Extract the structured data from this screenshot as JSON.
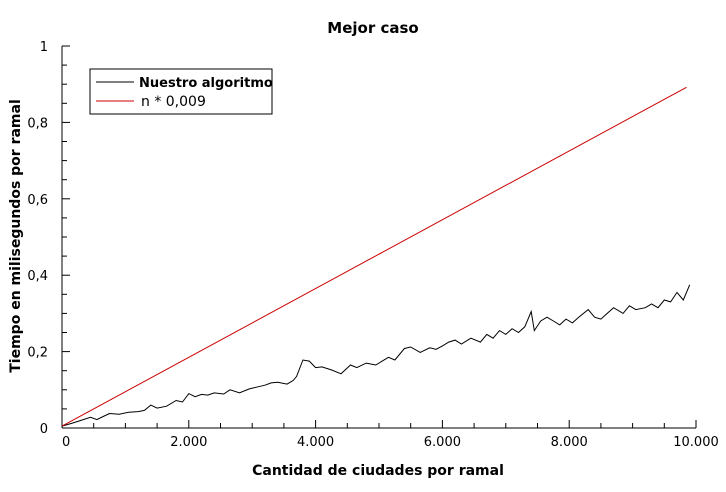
{
  "chart_data": {
    "type": "line",
    "title": "Mejor caso",
    "xlabel": "Cantidad de ciudades por ramal",
    "ylabel": "Tiempo en milisegundos por ramal",
    "xlim": [
      0,
      10000
    ],
    "ylim": [
      0,
      1
    ],
    "xticks": [
      {
        "value": 0,
        "label": "0"
      },
      {
        "value": 2000,
        "label": "2.000"
      },
      {
        "value": 4000,
        "label": "4.000"
      },
      {
        "value": 6000,
        "label": "6.000"
      },
      {
        "value": 8000,
        "label": "8.000"
      },
      {
        "value": 10000,
        "label": "10.000"
      }
    ],
    "yticks": [
      {
        "value": 0,
        "label": "0"
      },
      {
        "value": 0.2,
        "label": "0,2"
      },
      {
        "value": 0.4,
        "label": "0,4"
      },
      {
        "value": 0.6,
        "label": "0,6"
      },
      {
        "value": 0.8,
        "label": "0,8"
      },
      {
        "value": 1,
        "label": "1"
      }
    ],
    "grid": false,
    "legend_position": "top-left",
    "series": [
      {
        "name": "Nuestro algoritmo",
        "color": "#000000",
        "x": [
          0,
          150,
          300,
          450,
          550,
          650,
          750,
          900,
          1050,
          1200,
          1300,
          1400,
          1500,
          1650,
          1800,
          1900,
          2000,
          2100,
          2200,
          2300,
          2400,
          2550,
          2650,
          2800,
          2950,
          3100,
          3200,
          3300,
          3400,
          3550,
          3650,
          3700,
          3800,
          3900,
          4000,
          4100,
          4250,
          4400,
          4550,
          4650,
          4800,
          4950,
          5050,
          5150,
          5250,
          5400,
          5500,
          5650,
          5800,
          5900,
          6000,
          6100,
          6200,
          6300,
          6450,
          6600,
          6700,
          6800,
          6900,
          7000,
          7100,
          7200,
          7300,
          7400,
          7450,
          7550,
          7650,
          7750,
          7850,
          7950,
          8050,
          8150,
          8300,
          8400,
          8500,
          8600,
          8700,
          8850,
          8950,
          9050,
          9200,
          9300,
          9400,
          9500,
          9600,
          9700,
          9800,
          9900
        ],
        "y": [
          0.005,
          0.012,
          0.02,
          0.028,
          0.022,
          0.03,
          0.038,
          0.036,
          0.041,
          0.043,
          0.046,
          0.06,
          0.052,
          0.057,
          0.072,
          0.068,
          0.09,
          0.082,
          0.088,
          0.086,
          0.092,
          0.089,
          0.1,
          0.092,
          0.102,
          0.108,
          0.112,
          0.118,
          0.12,
          0.115,
          0.125,
          0.135,
          0.178,
          0.175,
          0.158,
          0.16,
          0.152,
          0.142,
          0.165,
          0.158,
          0.17,
          0.165,
          0.175,
          0.185,
          0.178,
          0.208,
          0.212,
          0.198,
          0.21,
          0.206,
          0.215,
          0.225,
          0.23,
          0.22,
          0.235,
          0.225,
          0.245,
          0.235,
          0.255,
          0.245,
          0.26,
          0.25,
          0.265,
          0.305,
          0.255,
          0.28,
          0.29,
          0.28,
          0.27,
          0.285,
          0.275,
          0.29,
          0.31,
          0.29,
          0.285,
          0.3,
          0.315,
          0.3,
          0.32,
          0.31,
          0.315,
          0.325,
          0.315,
          0.335,
          0.33,
          0.355,
          0.335,
          0.375
        ]
      },
      {
        "name": "n * 0,009",
        "color": "#cc0000",
        "x": [
          0,
          9850
        ],
        "y": [
          0.005,
          0.892
        ]
      }
    ]
  }
}
